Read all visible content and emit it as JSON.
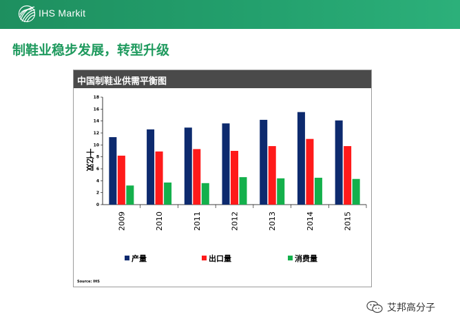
{
  "header": {
    "brand": "IHS Markit",
    "logo_icon": "ihs-globe-icon"
  },
  "slide": {
    "title": "制鞋业稳步发展，转型升级"
  },
  "colors": {
    "banner": "#1e9b68",
    "title": "#1f9a5e",
    "production": "#0d2a6e",
    "export": "#ff1a1a",
    "consumption": "#14b04c",
    "panel_header": "#4a4a4a"
  },
  "chart_data": {
    "type": "bar",
    "title": "中国制鞋业供需平衡图",
    "ylabel": "十亿双",
    "xlabel": "",
    "ylim": [
      0,
      18
    ],
    "yticks": [
      0,
      2,
      4,
      6,
      8,
      10,
      12,
      14,
      16,
      18
    ],
    "categories": [
      "2009",
      "2010",
      "2011",
      "2012",
      "2013",
      "2014",
      "2015"
    ],
    "series": [
      {
        "name": "产量",
        "color": "#0d2a6e",
        "values": [
          11.3,
          12.6,
          12.9,
          13.6,
          14.2,
          15.5,
          14.1
        ]
      },
      {
        "name": "出口量",
        "color": "#ff1a1a",
        "values": [
          8.2,
          8.9,
          9.3,
          9.0,
          9.8,
          11.0,
          9.8
        ]
      },
      {
        "name": "消费量",
        "color": "#14b04c",
        "values": [
          3.2,
          3.7,
          3.6,
          4.6,
          4.4,
          4.5,
          4.3
        ]
      }
    ],
    "source": "Source: IHS",
    "legend_position": "bottom"
  },
  "watermark": {
    "text": "艾邦高分子",
    "icon": "wechat-icon"
  }
}
